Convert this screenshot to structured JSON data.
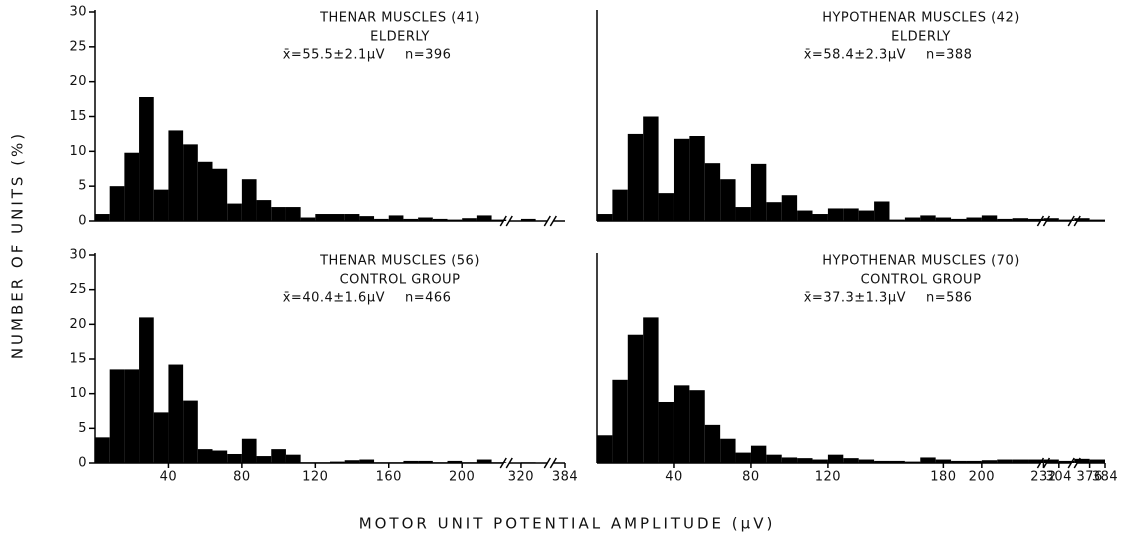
{
  "figure": {
    "ylabel": "NUMBER OF UNITS (%)",
    "xlabel": "MOTOR UNIT POTENTIAL AMPLITUDE (μV)"
  },
  "chart_data": [
    {
      "type": "histogram",
      "title": "THENAR MUSCLES (41)",
      "subtitle": "ELDERLY",
      "mean_label": "x̄=55.5±2.1μV",
      "n_label": "n=396",
      "bin_width": 8,
      "x": [
        0,
        8,
        16,
        24,
        32,
        40,
        48,
        56,
        64,
        72,
        80,
        88,
        96,
        104,
        112,
        120,
        128,
        136,
        144,
        152,
        160,
        168,
        176,
        184,
        192,
        200,
        208,
        216,
        320
      ],
      "values": [
        1.0,
        5,
        9.8,
        17.8,
        4.5,
        13,
        11,
        8.5,
        7.5,
        2.5,
        6,
        3,
        2,
        2,
        0.5,
        1,
        1,
        1,
        0.7,
        0.3,
        0.8,
        0.3,
        0.5,
        0.3,
        0.2,
        0.4,
        0.8,
        0.2,
        0.3
      ],
      "xsegments": [
        [
          0,
          224
        ],
        [
          312,
          336
        ],
        [
          376,
          384
        ]
      ],
      "ylim": [
        0,
        30
      ],
      "yticks": [
        0,
        5,
        10,
        15,
        20,
        25,
        30
      ],
      "color": "#000000"
    },
    {
      "type": "histogram",
      "title": "HYPOTHENAR MUSCLES (42)",
      "subtitle": "ELDERLY",
      "mean_label": "x̄=58.4±2.3μV",
      "n_label": "n=388",
      "bin_width": 8,
      "x": [
        0,
        8,
        16,
        24,
        32,
        40,
        48,
        56,
        64,
        72,
        80,
        88,
        96,
        104,
        112,
        120,
        128,
        136,
        144,
        152,
        160,
        168,
        176,
        184,
        192,
        200,
        208,
        216,
        224,
        296,
        304,
        368,
        376
      ],
      "values": [
        1.0,
        4.5,
        12.5,
        15,
        4,
        11.8,
        12.2,
        8.3,
        6,
        2,
        8.2,
        2.7,
        3.7,
        1.5,
        1,
        1.8,
        1.8,
        1.5,
        2.8,
        0.2,
        0.5,
        0.8,
        0.5,
        0.3,
        0.5,
        0.8,
        0.3,
        0.4,
        0.3,
        0.4,
        0.2,
        0.4,
        0.2
      ],
      "xsegments": [
        [
          0,
          232
        ],
        [
          296,
          312
        ],
        [
          368,
          384
        ]
      ],
      "ylim": [
        0,
        30
      ],
      "color": "#000000"
    },
    {
      "type": "histogram",
      "title": "THENAR MUSCLES (56)",
      "subtitle": "CONTROL GROUP",
      "mean_label": "x̄=40.4±1.6μV",
      "n_label": "n=466",
      "bin_width": 8,
      "x": [
        0,
        8,
        16,
        24,
        32,
        40,
        48,
        56,
        64,
        72,
        80,
        88,
        96,
        104,
        112,
        120,
        128,
        136,
        144,
        152,
        160,
        168,
        176,
        184,
        192,
        200,
        208,
        216,
        320
      ],
      "values": [
        3.7,
        13.5,
        13.5,
        21,
        7.3,
        14.2,
        9,
        2,
        1.8,
        1.3,
        3.5,
        1,
        2,
        1.2,
        0.1,
        0.1,
        0.2,
        0.4,
        0.5,
        0.1,
        0.1,
        0.3,
        0.3,
        0.1,
        0.3,
        0.1,
        0.5,
        0.1,
        0.1
      ],
      "xsegments": [
        [
          0,
          224
        ],
        [
          312,
          336
        ],
        [
          376,
          384
        ]
      ],
      "ylim": [
        0,
        30
      ],
      "yticks": [
        0,
        5,
        10,
        15,
        20,
        25,
        30
      ],
      "xticks": [
        40,
        80,
        120,
        160,
        200,
        320,
        384
      ],
      "color": "#000000"
    },
    {
      "type": "histogram",
      "title": "HYPOTHENAR MUSCLES (70)",
      "subtitle": "CONTROL GROUP",
      "mean_label": "x̄=37.3±1.3μV",
      "n_label": "n=586",
      "bin_width": 8,
      "x": [
        0,
        8,
        16,
        24,
        32,
        40,
        48,
        56,
        64,
        72,
        80,
        88,
        96,
        104,
        112,
        120,
        128,
        136,
        144,
        152,
        160,
        168,
        176,
        184,
        192,
        200,
        208,
        216,
        224,
        296,
        304,
        368,
        376
      ],
      "values": [
        4,
        12,
        18.5,
        21,
        8.8,
        11.2,
        10.5,
        5.5,
        3.5,
        1.5,
        2.5,
        1.2,
        0.8,
        0.7,
        0.5,
        1.2,
        0.7,
        0.5,
        0.3,
        0.3,
        0.2,
        0.8,
        0.5,
        0.3,
        0.3,
        0.4,
        0.5,
        0.5,
        0.5,
        0.5,
        0.3,
        0.6,
        0.5
      ],
      "xsegments": [
        [
          0,
          232
        ],
        [
          296,
          312
        ],
        [
          368,
          384
        ]
      ],
      "ylim": [
        0,
        30
      ],
      "xticks": [
        40,
        80,
        120,
        180,
        200,
        232,
        304,
        376,
        384
      ],
      "color": "#000000"
    }
  ]
}
